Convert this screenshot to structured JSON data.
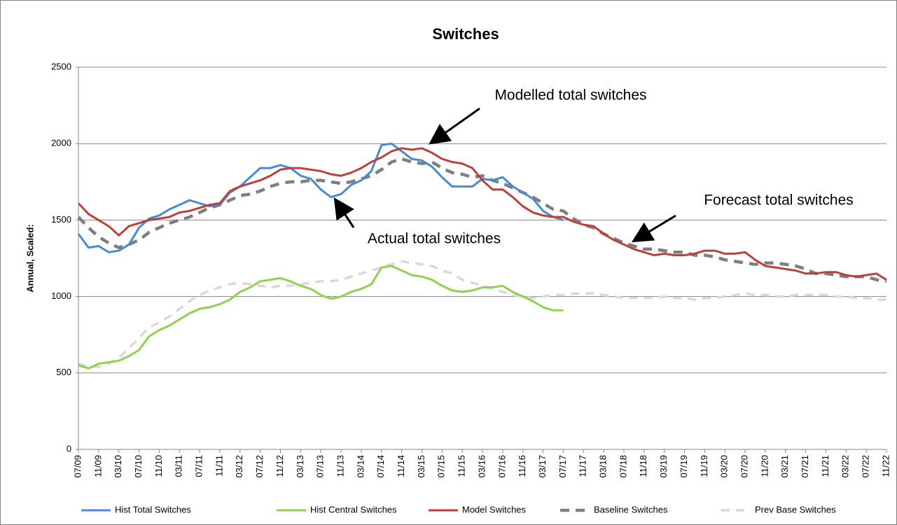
{
  "chart_data": {
    "type": "line",
    "title": "Switches",
    "y_label": "Annual, Scaled:",
    "categories": [
      "07/09",
      null,
      "11/09",
      null,
      "03/10",
      null,
      "07/10",
      null,
      "11/10",
      null,
      "03/11",
      null,
      "07/11",
      null,
      "11/11",
      null,
      "03/12",
      null,
      "07/12",
      null,
      "11/12",
      null,
      "03/13",
      null,
      "07/13",
      null,
      "11/13",
      null,
      "03/14",
      null,
      "07/14",
      null,
      "11/14",
      null,
      "03/15",
      null,
      "07/15",
      null,
      "11/15",
      null,
      "03/16",
      null,
      "07/16",
      null,
      "11/16",
      null,
      "03/17",
      null,
      "07/17",
      null,
      "11/17",
      null,
      "03/18",
      null,
      "07/18",
      null,
      "11/18",
      null,
      "03/19",
      null,
      "07/19",
      null,
      "11/19",
      null,
      "03/20",
      null,
      "07/20",
      null,
      "11/20",
      null,
      "03/21",
      null,
      "07/21",
      null,
      "11/21",
      null,
      "03/22",
      null,
      "07/22",
      null,
      "11/22"
    ],
    "series": [
      {
        "name": "Hist Total Switches",
        "color": "#4a8ad4",
        "dash": "solid",
        "values": [
          1410,
          1320,
          1330,
          1290,
          1300,
          1340,
          1450,
          1510,
          1530,
          1570,
          1600,
          1630,
          1610,
          1590,
          1600,
          1680,
          1720,
          1780,
          1840,
          1840,
          1860,
          1840,
          1790,
          1770,
          1700,
          1650,
          1670,
          1730,
          1760,
          1820,
          1990,
          2000,
          1950,
          1900,
          1890,
          1850,
          1780,
          1720,
          1720,
          1720,
          1770,
          1760,
          1780,
          1720,
          1680,
          1640,
          1560,
          1520,
          1500,
          null,
          null,
          null,
          null,
          null,
          null,
          null,
          null,
          null,
          null,
          null,
          null,
          null,
          null,
          null,
          null,
          null,
          null,
          null,
          null,
          null,
          null,
          null,
          null,
          null,
          null,
          null,
          null,
          null,
          null,
          null,
          null
        ]
      },
      {
        "name": "Hist Central Switches",
        "color": "#92d050",
        "dash": "solid",
        "values": [
          550,
          530,
          560,
          570,
          580,
          610,
          650,
          740,
          780,
          810,
          850,
          890,
          920,
          930,
          950,
          980,
          1030,
          1060,
          1100,
          1110,
          1120,
          1100,
          1070,
          1050,
          1010,
          985,
          1000,
          1030,
          1050,
          1080,
          1190,
          1200,
          1170,
          1140,
          1130,
          1110,
          1070,
          1040,
          1030,
          1040,
          1060,
          1060,
          1070,
          1030,
          1000,
          970,
          930,
          910,
          910,
          null,
          null,
          null,
          null,
          null,
          null,
          null,
          null,
          null,
          null,
          null,
          null,
          null,
          null,
          null,
          null,
          null,
          null,
          null,
          null,
          null,
          null,
          null,
          null,
          null,
          null,
          null,
          null,
          null,
          null,
          null,
          null
        ]
      },
      {
        "name": "Model Switches",
        "color": "#be3f3a",
        "dash": "solid",
        "values": [
          1610,
          1540,
          1500,
          1460,
          1400,
          1460,
          1480,
          1500,
          1510,
          1520,
          1550,
          1560,
          1580,
          1600,
          1610,
          1690,
          1720,
          1740,
          1760,
          1790,
          1830,
          1840,
          1840,
          1830,
          1820,
          1800,
          1790,
          1810,
          1840,
          1880,
          1910,
          1950,
          1970,
          1960,
          1970,
          1940,
          1900,
          1880,
          1870,
          1840,
          1760,
          1700,
          1700,
          1650,
          1590,
          1550,
          1530,
          1520,
          1520,
          1490,
          1470,
          1460,
          1410,
          1370,
          1340,
          1310,
          1290,
          1270,
          1280,
          1270,
          1270,
          1280,
          1300,
          1300,
          1280,
          1280,
          1290,
          1240,
          1200,
          1190,
          1180,
          1170,
          1150,
          1150,
          1160,
          1160,
          1140,
          1130,
          1140,
          1150,
          1110
        ]
      },
      {
        "name": "Baseline Switches",
        "color": "#7f7f7f",
        "dash": "dashed",
        "values": [
          1520,
          1450,
          1390,
          1350,
          1320,
          1340,
          1370,
          1420,
          1450,
          1480,
          1500,
          1520,
          1550,
          1580,
          1600,
          1630,
          1660,
          1670,
          1690,
          1720,
          1740,
          1750,
          1750,
          1760,
          1760,
          1750,
          1740,
          1750,
          1770,
          1790,
          1830,
          1880,
          1900,
          1880,
          1870,
          1880,
          1840,
          1810,
          1800,
          1780,
          1790,
          1760,
          1740,
          1710,
          1680,
          1650,
          1610,
          1570,
          1560,
          1510,
          1470,
          1450,
          1410,
          1380,
          1350,
          1330,
          1310,
          1310,
          1300,
          1290,
          1290,
          1270,
          1270,
          1260,
          1240,
          1230,
          1220,
          1210,
          1220,
          1220,
          1210,
          1200,
          1180,
          1150,
          1150,
          1140,
          1130,
          1130,
          1130,
          1110,
          1100
        ]
      },
      {
        "name": "Prev Base Switches",
        "color": "#d9d9d9",
        "dash": "dashed",
        "values": [
          560,
          540,
          540,
          560,
          600,
          660,
          730,
          800,
          830,
          870,
          920,
          970,
          1010,
          1040,
          1060,
          1080,
          1090,
          1080,
          1070,
          1060,
          1070,
          1070,
          1080,
          1090,
          1100,
          1100,
          1110,
          1130,
          1150,
          1170,
          1190,
          1210,
          1230,
          1220,
          1210,
          1200,
          1170,
          1150,
          1110,
          1090,
          1070,
          1050,
          1030,
          1010,
          1000,
          990,
          1000,
          1010,
          1010,
          1020,
          1020,
          1020,
          1010,
          1000,
          990,
          990,
          990,
          990,
          1000,
          990,
          990,
          980,
          990,
          990,
          1000,
          1010,
          1020,
          1010,
          1010,
          1000,
          1000,
          1010,
          1010,
          1010,
          1010,
          1000,
          1000,
          990,
          990,
          980,
          980
        ]
      }
    ],
    "ylim": [
      0,
      2500
    ],
    "yticks": [
      0,
      500,
      1000,
      1500,
      2000,
      2500
    ],
    "grid": true,
    "legend": "bottom",
    "annotations": [
      "Modelled total switches",
      "Actual total switches",
      "Forecast total switches"
    ]
  }
}
